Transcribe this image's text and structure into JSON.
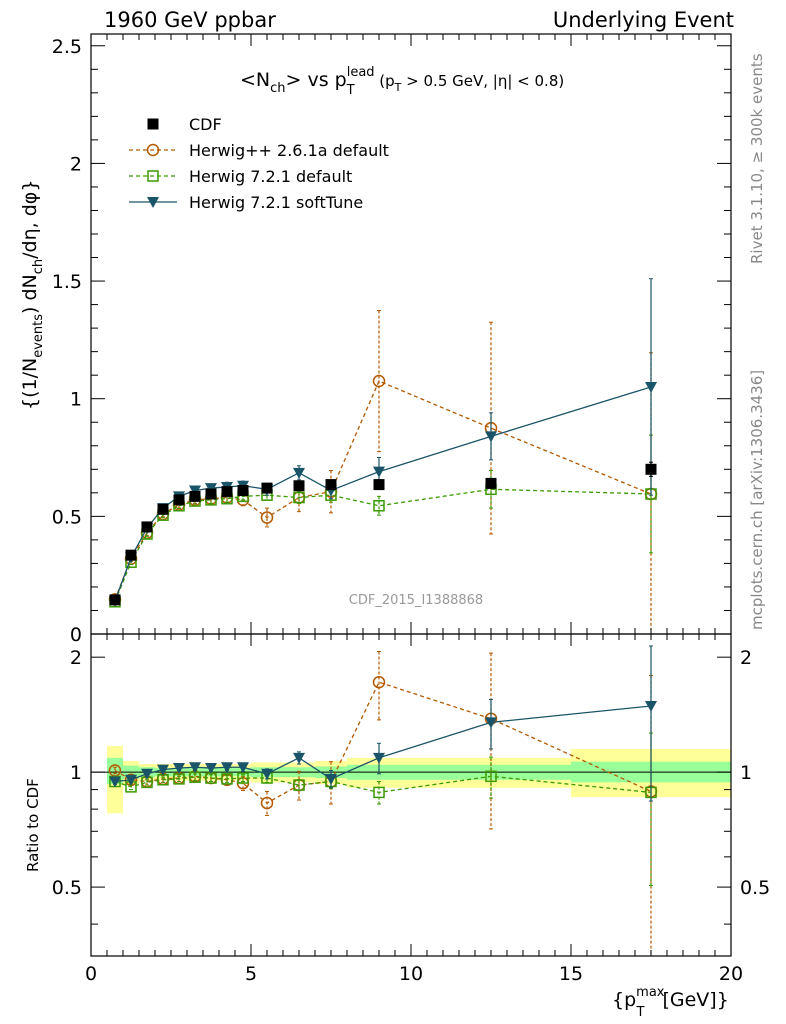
{
  "header": {
    "left": "1960 GeV ppbar",
    "right": "Underlying Event"
  },
  "side_labels": {
    "rivet": "Rivet 3.1.10, ≥ 300k events",
    "mcplots": "mcplots.cern.ch [arXiv:1306.3436]"
  },
  "chart_data": [
    {
      "type": "line",
      "panel": "main",
      "title_parts": {
        "n_open": "<N",
        "n_sub": "ch",
        "vs": "> vs p",
        "pt_sup": "lead",
        "pt_sub": "T",
        "cut_open": " (p",
        "cut_sub": "T",
        "cut_close": " > 0.5 GeV, |η| < 0.8)"
      },
      "ylabel_parts": {
        "a": "{(1/N",
        "a_sub": "events",
        "b": ") dN",
        "b_sub": "ch",
        "c": "/dη, dφ}"
      },
      "watermark": "CDF_2015_I1388868",
      "xlim": [
        0,
        20
      ],
      "ylim": [
        0,
        2.55
      ],
      "yticks": [
        0,
        0.5,
        1,
        1.5,
        2,
        2.5
      ],
      "ytick_labels": [
        "0",
        "0.5",
        "1",
        "1.5",
        "2",
        "2.5"
      ],
      "legend_position": "top-left",
      "series": [
        {
          "name": "CDF",
          "color": "#000000",
          "marker": "square-filled",
          "line": "none",
          "x": [
            0.75,
            1.25,
            1.75,
            2.25,
            2.75,
            3.25,
            3.75,
            4.25,
            4.75,
            5.5,
            6.5,
            7.5,
            9.0,
            12.5,
            17.5
          ],
          "y": [
            0.145,
            0.335,
            0.455,
            0.53,
            0.57,
            0.585,
            0.595,
            0.605,
            0.61,
            0.62,
            0.63,
            0.635,
            0.635,
            0.64,
            0.7
          ],
          "err": [
            0.01,
            0.01,
            0.01,
            0.01,
            0.01,
            0.01,
            0.01,
            0.01,
            0.01,
            0.01,
            0.015,
            0.015,
            0.02,
            0.02,
            0.03
          ]
        },
        {
          "name": "Herwig++ 2.6.1a default",
          "color": "#b35900",
          "marker": "circle-open",
          "line": "dashed",
          "x": [
            0.75,
            1.25,
            1.75,
            2.25,
            2.75,
            3.25,
            3.75,
            4.25,
            4.75,
            5.5,
            6.5,
            7.5,
            9.0,
            12.5,
            17.5
          ],
          "y": [
            0.147,
            0.32,
            0.43,
            0.51,
            0.55,
            0.57,
            0.575,
            0.58,
            0.57,
            0.495,
            0.58,
            0.605,
            1.075,
            0.875,
            0.595
          ],
          "err": [
            0.01,
            0.012,
            0.012,
            0.012,
            0.015,
            0.015,
            0.02,
            0.02,
            0.025,
            0.04,
            0.06,
            0.09,
            0.3,
            0.45,
            0.6
          ]
        },
        {
          "name": "Herwig 7.2.1 default",
          "color": "#3a9a00",
          "marker": "square-open",
          "line": "dashed",
          "x": [
            0.75,
            1.25,
            1.75,
            2.25,
            2.75,
            3.25,
            3.75,
            4.25,
            4.75,
            5.5,
            6.5,
            7.5,
            9.0,
            12.5,
            17.5
          ],
          "y": [
            0.137,
            0.305,
            0.425,
            0.505,
            0.545,
            0.565,
            0.57,
            0.575,
            0.585,
            0.59,
            0.58,
            0.59,
            0.545,
            0.615,
            0.595
          ],
          "err": [
            0.008,
            0.01,
            0.01,
            0.01,
            0.012,
            0.012,
            0.015,
            0.015,
            0.015,
            0.02,
            0.025,
            0.03,
            0.04,
            0.08,
            0.25
          ]
        },
        {
          "name": "Herwig 7.2.1 softTune",
          "color": "#1a5468",
          "marker": "triangle-down",
          "line": "solid",
          "x": [
            0.75,
            1.25,
            1.75,
            2.25,
            2.75,
            3.25,
            3.75,
            4.25,
            4.75,
            5.5,
            6.5,
            7.5,
            9.0,
            12.5,
            17.5
          ],
          "y": [
            0.14,
            0.325,
            0.45,
            0.535,
            0.585,
            0.61,
            0.62,
            0.625,
            0.63,
            0.615,
            0.685,
            0.61,
            0.69,
            0.84,
            1.05
          ],
          "err": [
            0.008,
            0.01,
            0.01,
            0.012,
            0.012,
            0.015,
            0.015,
            0.02,
            0.02,
            0.025,
            0.03,
            0.035,
            0.06,
            0.1,
            0.46
          ]
        }
      ]
    },
    {
      "type": "line",
      "panel": "ratio",
      "ylabel": "Ratio to CDF",
      "xlabel_parts": {
        "a": "{p",
        "sub": "T",
        "sup": "max",
        "b": " [GeV]}"
      },
      "xlim": [
        0,
        20
      ],
      "ylim": [
        0.33,
        2.3
      ],
      "xticks": [
        0,
        5,
        10,
        15,
        20
      ],
      "xtick_labels": [
        "0",
        "5",
        "10",
        "15",
        "20"
      ],
      "yticks": [
        0.5,
        1,
        2
      ],
      "ytick_labels": [
        "0.5",
        "1",
        "2"
      ],
      "bands": [
        {
          "x0": 0.5,
          "x1": 1.0,
          "green": [
            0.93,
            1.09
          ],
          "yellow": [
            0.78,
            1.17
          ]
        },
        {
          "x0": 1.0,
          "x1": 1.5,
          "green": [
            0.96,
            1.04
          ],
          "yellow": [
            0.93,
            1.07
          ]
        },
        {
          "x0": 1.5,
          "x1": 2.0,
          "green": [
            0.97,
            1.03
          ],
          "yellow": [
            0.95,
            1.05
          ]
        },
        {
          "x0": 2.0,
          "x1": 5.0,
          "green": [
            0.975,
            1.025
          ],
          "yellow": [
            0.95,
            1.05
          ]
        },
        {
          "x0": 5.0,
          "x1": 7.0,
          "green": [
            0.97,
            1.03
          ],
          "yellow": [
            0.94,
            1.06
          ]
        },
        {
          "x0": 7.0,
          "x1": 8.0,
          "green": [
            0.965,
            1.035
          ],
          "yellow": [
            0.93,
            1.07
          ]
        },
        {
          "x0": 8.0,
          "x1": 10.0,
          "green": [
            0.955,
            1.045
          ],
          "yellow": [
            0.91,
            1.09
          ]
        },
        {
          "x0": 10.0,
          "x1": 15.0,
          "green": [
            0.955,
            1.045
          ],
          "yellow": [
            0.91,
            1.09
          ]
        },
        {
          "x0": 15.0,
          "x1": 20.0,
          "green": [
            0.94,
            1.065
          ],
          "yellow": [
            0.86,
            1.15
          ]
        }
      ],
      "series": [
        {
          "name": "Herwig++ 2.6.1a default",
          "color": "#b35900",
          "marker": "circle-open",
          "line": "dashed",
          "x": [
            0.75,
            1.25,
            1.75,
            2.25,
            2.75,
            3.25,
            3.75,
            4.25,
            4.75,
            5.5,
            6.5,
            7.5,
            9.0,
            12.5,
            17.5
          ],
          "y": [
            1.01,
            0.955,
            0.945,
            0.96,
            0.965,
            0.975,
            0.965,
            0.955,
            0.935,
            0.83,
            0.925,
            0.945,
            1.72,
            1.38,
            0.89
          ],
          "err": [
            0.02,
            0.02,
            0.02,
            0.02,
            0.02,
            0.025,
            0.03,
            0.03,
            0.04,
            0.06,
            0.08,
            0.12,
            0.35,
            0.67,
            0.9
          ]
        },
        {
          "name": "Herwig 7.2.1 default",
          "color": "#3a9a00",
          "marker": "square-open",
          "line": "dashed",
          "x": [
            0.75,
            1.25,
            1.75,
            2.25,
            2.75,
            3.25,
            3.75,
            4.25,
            4.75,
            5.5,
            6.5,
            7.5,
            9.0,
            12.5,
            17.5
          ],
          "y": [
            0.945,
            0.915,
            0.94,
            0.955,
            0.96,
            0.97,
            0.965,
            0.96,
            0.965,
            0.965,
            0.925,
            0.945,
            0.885,
            0.975,
            0.885
          ],
          "err": [
            0.015,
            0.015,
            0.015,
            0.015,
            0.015,
            0.02,
            0.02,
            0.02,
            0.02,
            0.025,
            0.03,
            0.04,
            0.06,
            0.12,
            0.38
          ]
        },
        {
          "name": "Herwig 7.2.1 softTune",
          "color": "#1a5468",
          "marker": "triangle-down",
          "line": "solid",
          "x": [
            0.75,
            1.25,
            1.75,
            2.25,
            2.75,
            3.25,
            3.75,
            4.25,
            4.75,
            5.5,
            6.5,
            7.5,
            9.0,
            12.5,
            17.5
          ],
          "y": [
            0.945,
            0.955,
            0.99,
            1.015,
            1.025,
            1.03,
            1.025,
            1.03,
            1.03,
            0.99,
            1.09,
            0.96,
            1.09,
            1.35,
            1.49
          ],
          "err": [
            0.015,
            0.015,
            0.015,
            0.015,
            0.015,
            0.02,
            0.02,
            0.02,
            0.025,
            0.03,
            0.04,
            0.05,
            0.1,
            0.2,
            0.65
          ]
        }
      ]
    }
  ]
}
